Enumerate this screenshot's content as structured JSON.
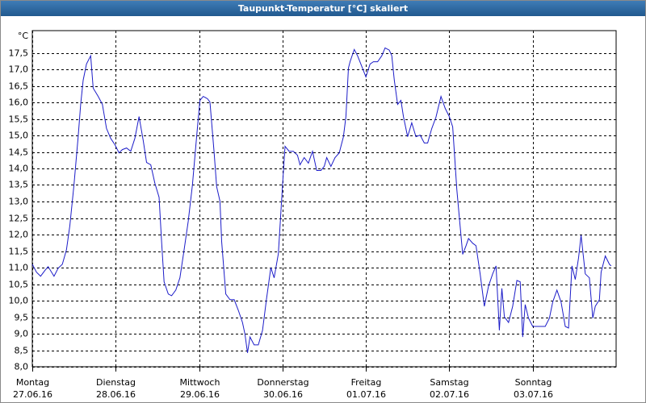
{
  "chart_data": {
    "type": "line",
    "title": "Taupunkt-Temperatur [°C] skaliert",
    "y_unit": "°C",
    "xlim": [
      0,
      7
    ],
    "ylim": [
      8,
      18
    ],
    "grid": true,
    "xticks": [
      {
        "value": 0,
        "label": "27.06.16"
      },
      {
        "value": 1,
        "label": "28.06.16"
      },
      {
        "value": 2,
        "label": "29.06.16"
      },
      {
        "value": 3,
        "label": "30.06.16"
      },
      {
        "value": 4,
        "label": "01.07.16"
      },
      {
        "value": 5,
        "label": "02.07.16"
      },
      {
        "value": 6,
        "label": "03.07.16"
      }
    ],
    "xtick_days": [
      "Montag",
      "Dienstag",
      "Mittwoch",
      "Donnerstag",
      "Freitag",
      "Samstag",
      "Sonntag"
    ],
    "yticks": [
      {
        "value": 8,
        "label": "8,0"
      },
      {
        "value": 8.5,
        "label": "8,5"
      },
      {
        "value": 9,
        "label": "9,0"
      },
      {
        "value": 9.5,
        "label": "9,5"
      },
      {
        "value": 10,
        "label": "10,0"
      },
      {
        "value": 10.5,
        "label": "10,5"
      },
      {
        "value": 11,
        "label": "11,0"
      },
      {
        "value": 11.5,
        "label": "11,5"
      },
      {
        "value": 12,
        "label": "12,0"
      },
      {
        "value": 12.5,
        "label": "12,5"
      },
      {
        "value": 13,
        "label": "13,0"
      },
      {
        "value": 13.5,
        "label": "13,5"
      },
      {
        "value": 14,
        "label": "14,0"
      },
      {
        "value": 14.5,
        "label": "14,5"
      },
      {
        "value": 15,
        "label": "15,0"
      },
      {
        "value": 15.5,
        "label": "15,5"
      },
      {
        "value": 16,
        "label": "16,0"
      },
      {
        "value": 16.5,
        "label": "16,5"
      },
      {
        "value": 17,
        "label": "17,0"
      },
      {
        "value": 17.5,
        "label": "17,5"
      }
    ],
    "color": "#1c1cc8",
    "x": [
      0,
      0.05,
      0.1,
      0.15,
      0.19,
      0.26,
      0.31,
      0.36,
      0.41,
      0.45,
      0.5,
      0.55,
      0.58,
      0.61,
      0.65,
      0.7,
      0.73,
      0.79,
      0.84,
      0.89,
      0.94,
      0.99,
      1.04,
      1.08,
      1.13,
      1.18,
      1.23,
      1.28,
      1.33,
      1.37,
      1.42,
      1.47,
      1.52,
      1.55,
      1.58,
      1.63,
      1.67,
      1.72,
      1.77,
      1.82,
      1.87,
      1.92,
      1.97,
      2.01,
      2.05,
      2.1,
      2.13,
      2.18,
      2.21,
      2.25,
      2.27,
      2.32,
      2.37,
      2.42,
      2.47,
      2.52,
      2.55,
      2.58,
      2.61,
      2.66,
      2.71,
      2.76,
      2.81,
      2.86,
      2.9,
      2.95,
      3.0,
      3.03,
      3.08,
      3.13,
      3.18,
      3.21,
      3.26,
      3.31,
      3.36,
      3.41,
      3.46,
      3.5,
      3.53,
      3.58,
      3.63,
      3.68,
      3.73,
      3.76,
      3.79,
      3.81,
      3.86,
      3.9,
      3.95,
      4.0,
      4.05,
      4.09,
      4.14,
      4.19,
      4.23,
      4.28,
      4.31,
      4.34,
      4.38,
      4.42,
      4.45,
      4.5,
      4.55,
      4.6,
      4.65,
      4.7,
      4.74,
      4.79,
      4.84,
      4.9,
      4.95,
      5.0,
      5.04,
      5.09,
      5.13,
      5.16,
      5.2,
      5.23,
      5.28,
      5.32,
      5.37,
      5.42,
      5.47,
      5.52,
      5.56,
      5.6,
      5.63,
      5.66,
      5.71,
      5.76,
      5.81,
      5.85,
      5.88,
      5.91,
      5.95,
      6.0,
      6.1,
      6.15,
      6.2,
      6.24,
      6.29,
      6.34,
      6.39,
      6.43,
      6.47,
      6.51,
      6.55,
      6.58,
      6.63,
      6.68,
      6.72,
      6.75,
      6.8,
      6.82,
      6.87,
      6.92,
      6.94
    ],
    "values": [
      11.1,
      10.86,
      10.74,
      10.91,
      11.03,
      10.74,
      10.98,
      11.1,
      11.54,
      12.27,
      13.5,
      14.96,
      15.94,
      16.67,
      17.16,
      17.41,
      16.43,
      16.18,
      15.94,
      15.21,
      14.91,
      14.72,
      14.47,
      14.57,
      14.62,
      14.52,
      14.91,
      15.57,
      14.84,
      14.18,
      14.11,
      13.55,
      13.13,
      11.79,
      10.57,
      10.2,
      10.15,
      10.32,
      10.69,
      11.54,
      12.4,
      13.5,
      14.96,
      16.06,
      16.18,
      16.11,
      16.01,
      14.47,
      13.45,
      13.01,
      11.79,
      10.2,
      10.03,
      10.03,
      9.71,
      9.34,
      8.98,
      8.42,
      8.9,
      8.66,
      8.66,
      9.1,
      10.08,
      11.0,
      10.69,
      11.42,
      13.5,
      14.67,
      14.52,
      14.52,
      14.4,
      14.11,
      14.33,
      14.16,
      14.52,
      13.94,
      13.94,
      14.06,
      14.33,
      14.06,
      14.33,
      14.47,
      14.96,
      15.57,
      17.04,
      17.23,
      17.6,
      17.41,
      17.09,
      16.77,
      17.16,
      17.23,
      17.23,
      17.41,
      17.65,
      17.58,
      17.41,
      16.67,
      15.94,
      16.06,
      15.57,
      14.96,
      15.38,
      14.96,
      15.01,
      14.77,
      14.77,
      15.21,
      15.55,
      16.18,
      15.82,
      15.57,
      15.26,
      13.37,
      12.23,
      11.4,
      11.66,
      11.88,
      11.74,
      11.66,
      10.81,
      9.83,
      10.44,
      10.81,
      11.05,
      9.1,
      10.37,
      9.51,
      9.34,
      9.83,
      10.61,
      10.57,
      8.9,
      9.88,
      9.47,
      9.22,
      9.22,
      9.22,
      9.47,
      9.96,
      10.32,
      9.96,
      9.22,
      9.17,
      11.05,
      10.64,
      11.3,
      11.98,
      10.81,
      10.69,
      9.47,
      9.83,
      10.03,
      10.86,
      11.35,
      11.1,
      11.05
    ]
  }
}
